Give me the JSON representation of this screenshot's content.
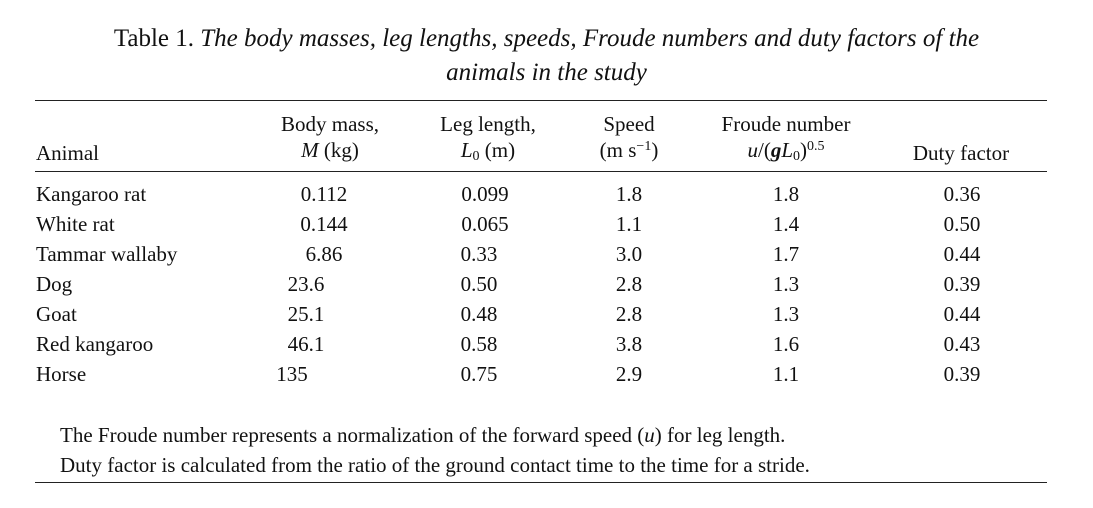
{
  "caption": {
    "label": "Table 1.",
    "text_line1": "The body masses, leg lengths, speeds, Froude numbers and duty factors of the",
    "text_line2": "animals in the study"
  },
  "headers": {
    "animal": "Animal",
    "mass_line1": "Body mass,",
    "mass_sym": "M",
    "mass_unit": " (kg)",
    "leg_line1": "Leg length,",
    "leg_sym": "L",
    "leg_sub": "0",
    "leg_unit": " (m)",
    "speed_line1": "Speed",
    "speed_unit_a": "(m s",
    "speed_exp": "−1",
    "speed_unit_b": ")",
    "froude_line1": "Froude number",
    "froude_u": "u",
    "froude_slash": "/(",
    "froude_g": "g",
    "froude_L": "L",
    "froude_sub": "0",
    "froude_close": ")",
    "froude_exp": "0.5",
    "duty": "Duty factor"
  },
  "rows": [
    {
      "animal": "Kangaroo rat",
      "mass": "0.112",
      "leg": "0.099",
      "speed": "1.8",
      "froude": "1.8",
      "duty": "0.36"
    },
    {
      "animal": "White rat",
      "mass": "0.144",
      "leg": "0.065",
      "speed": "1.1",
      "froude": "1.4",
      "duty": "0.50"
    },
    {
      "animal": "Tammar wallaby",
      "mass": "6.86",
      "leg": "0.33",
      "speed": "3.0",
      "froude": "1.7",
      "duty": "0.44"
    },
    {
      "animal": "Dog",
      "mass": "23.6",
      "leg": "0.50",
      "speed": "2.8",
      "froude": "1.3",
      "duty": "0.39"
    },
    {
      "animal": "Goat",
      "mass": "25.1",
      "leg": "0.48",
      "speed": "2.8",
      "froude": "1.3",
      "duty": "0.44"
    },
    {
      "animal": "Red kangaroo",
      "mass": "46.1",
      "leg": "0.58",
      "speed": "3.8",
      "froude": "1.6",
      "duty": "0.43"
    },
    {
      "animal": "Horse",
      "mass": "135",
      "leg": "0.75",
      "speed": "2.9",
      "froude": "1.1",
      "duty": "0.39"
    }
  ],
  "notes": {
    "line1_a": "The Froude number represents a normalization of the forward speed (",
    "line1_u": "u",
    "line1_b": ") for leg length.",
    "line2": "Duty factor is calculated from the ratio of the ground contact time to the time for a stride."
  }
}
